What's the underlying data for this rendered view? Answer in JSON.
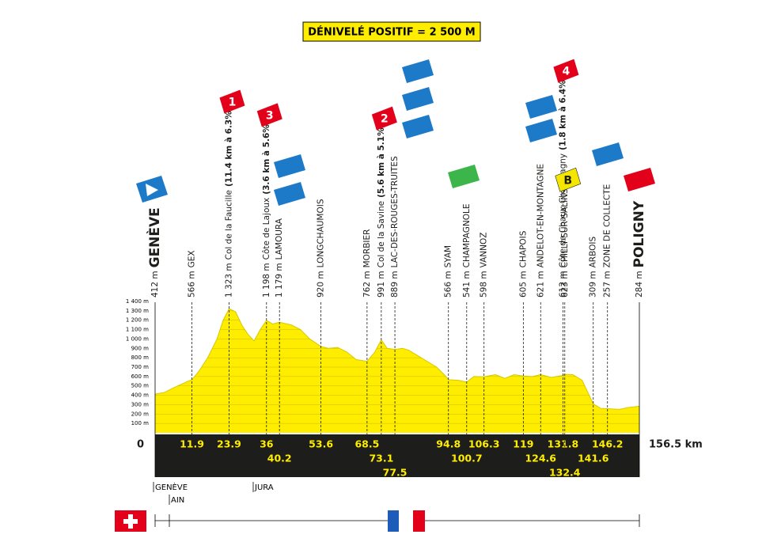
{
  "chart_data": {
    "type": "area",
    "title": "DÉNIVELÉ POSITIF = 2 500 M",
    "color": "#ffed00",
    "x": [
      0,
      3,
      6,
      10,
      11.9,
      14,
      17,
      20,
      22,
      23.9,
      26,
      28,
      30,
      32,
      34,
      36,
      38,
      40.2,
      44,
      47,
      50,
      53.6,
      56,
      59,
      62,
      65,
      68.5,
      71,
      73.1,
      75,
      77.5,
      80,
      82,
      85,
      88,
      91,
      94,
      94.8,
      98,
      100.7,
      103,
      106.3,
      110,
      113,
      116,
      119,
      122,
      124.6,
      128,
      131.8,
      132.4,
      135,
      138,
      141.6,
      144,
      146.2,
      150,
      153,
      156.5
    ],
    "values": [
      412,
      430,
      480,
      540,
      566,
      650,
      800,
      1000,
      1200,
      1323,
      1290,
      1150,
      1050,
      980,
      1100,
      1198,
      1160,
      1179,
      1150,
      1100,
      1000,
      920,
      900,
      910,
      860,
      780,
      762,
      860,
      991,
      900,
      889,
      900,
      880,
      820,
      760,
      700,
      600,
      566,
      560,
      541,
      600,
      598,
      620,
      580,
      620,
      605,
      600,
      621,
      590,
      612,
      623,
      620,
      560,
      309,
      260,
      257,
      250,
      270,
      284
    ],
    "xlim": [
      0,
      156.5
    ],
    "xticks": [
      0,
      {
        "value": 156.5,
        "label": "156.5 km"
      }
    ],
    "ylim": [
      0,
      1400
    ],
    "yticks": [
      {
        "value": 100,
        "label": "100 m"
      },
      {
        "value": 200,
        "label": "200 m"
      },
      {
        "value": 300,
        "label": "300 m"
      },
      {
        "value": 400,
        "label": "400 m"
      },
      {
        "value": 500,
        "label": "500 m"
      },
      {
        "value": 600,
        "label": "600 m"
      },
      {
        "value": 700,
        "label": "700 m"
      },
      {
        "value": 800,
        "label": "800 m"
      },
      {
        "value": 900,
        "label": "900 m"
      },
      {
        "value": 1000,
        "label": "1 000 m"
      },
      {
        "value": 1100,
        "label": "1 100 m"
      },
      {
        "value": 1200,
        "label": "1 200 m"
      },
      {
        "value": 1300,
        "label": "1 300 m"
      },
      {
        "value": 1400,
        "label": "1 400 m"
      }
    ],
    "grid": true,
    "waypoints": [
      {
        "altitude": "412 m",
        "name": "GENÈVE"
      },
      {
        "altitude": "566 m",
        "name": "GEX",
        "km": 11.9
      },
      {
        "altitude": "1 323 m",
        "name": "Col de la Faucille",
        "climb": "(11.4 km à 6.3%)",
        "badge": "1",
        "km": 23.9
      },
      {
        "altitude": "1 198 m",
        "name": "Côte de Lajoux",
        "climb": "(3.6 km à 5.6%)",
        "badge": "3",
        "km": 36
      },
      {
        "altitude": "1 179 m",
        "name": "LAMOURA",
        "km": 40.2
      },
      {
        "altitude": "920 m",
        "name": "LONGCHAUMOIS",
        "km": 53.6
      },
      {
        "altitude": "762 m",
        "name": "MORBIER",
        "km": 68.5
      },
      {
        "altitude": "991 m",
        "name": "Col de la Savine",
        "climb": "(5.6 km à 5.1%)",
        "badge": "2",
        "km": 73.1
      },
      {
        "altitude": "889 m",
        "name": "LAC-DES-ROUGES-TRUITES",
        "km": 77.5
      },
      {
        "altitude": "566 m",
        "name": "SYAM",
        "km": 94.8
      },
      {
        "altitude": "541 m",
        "name": "CHAMPAGNOLE",
        "km": 100.7
      },
      {
        "altitude": "598 m",
        "name": "VANNOZ",
        "km": 106.3
      },
      {
        "altitude": "605 m",
        "name": "CHAPOIS",
        "km": 119
      },
      {
        "altitude": "621 m",
        "name": "ANDELOT-EN-MONTAGNE",
        "km": 124.6
      },
      {
        "altitude": "612 m",
        "name": "Côte de Chaux-Champagny",
        "climb": "(1.8 km à 6.4%)",
        "badge": "4",
        "km": 131.8
      },
      {
        "altitude": "623 m",
        "name": "CHILLY-SUR-SALINS",
        "badge": "B",
        "km": 132.4
      },
      {
        "altitude": "309 m",
        "name": "ARBOIS",
        "km": 141.6
      },
      {
        "altitude": "257 m",
        "name": "ZONE DE COLLECTE",
        "km": 146.2
      },
      {
        "altitude": "284 m",
        "name": "POLIGNY"
      }
    ],
    "regions": [
      "GENÈVE",
      "AIN",
      "JURA"
    ]
  }
}
